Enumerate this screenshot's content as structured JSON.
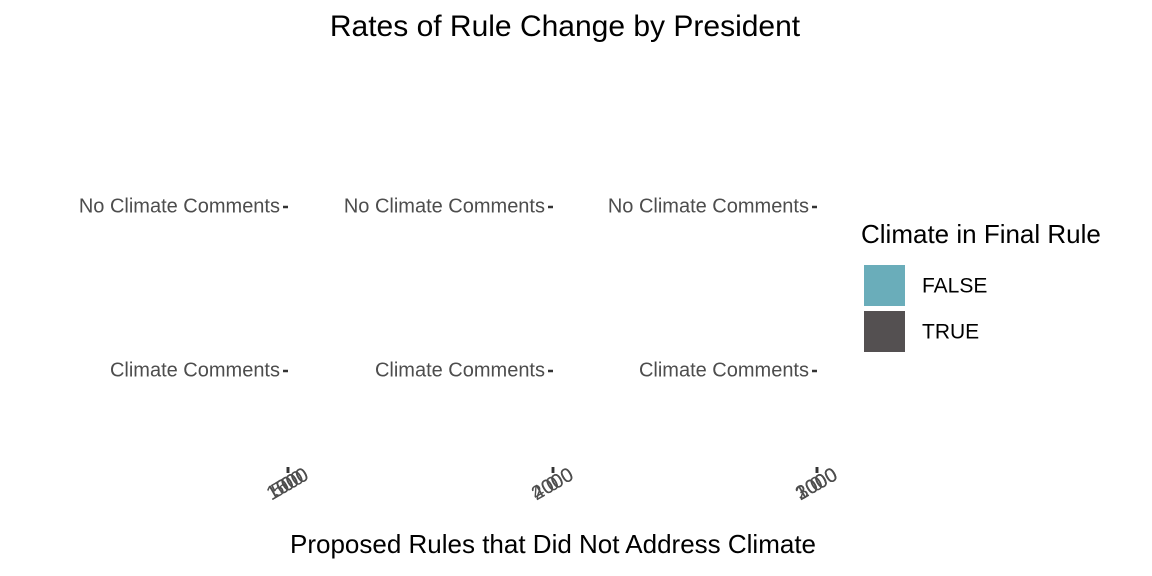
{
  "chart_data": {
    "type": "bar",
    "title": "Rates of Rule Change by President",
    "x_label": "Proposed Rules that Did Not Address Climate",
    "legend_title": "Climate in Final Rule",
    "legend_position": "right",
    "series": [
      {
        "name": "FALSE",
        "color": "#6aadba"
      },
      {
        "name": "TRUE",
        "color": "#545051"
      }
    ],
    "panels": [
      {
        "categories": [
          "No Climate Comments",
          "Climate Comments"
        ],
        "xticks": [
          0,
          500,
          1000,
          1500
        ]
      },
      {
        "categories": [
          "No Climate Comments",
          "Climate Comments"
        ],
        "xticks": [
          0,
          2000,
          4000
        ]
      },
      {
        "categories": [
          "No Climate Comments",
          "Climate Comments"
        ],
        "xticks": [
          0,
          1000,
          2000,
          3000
        ]
      }
    ]
  }
}
